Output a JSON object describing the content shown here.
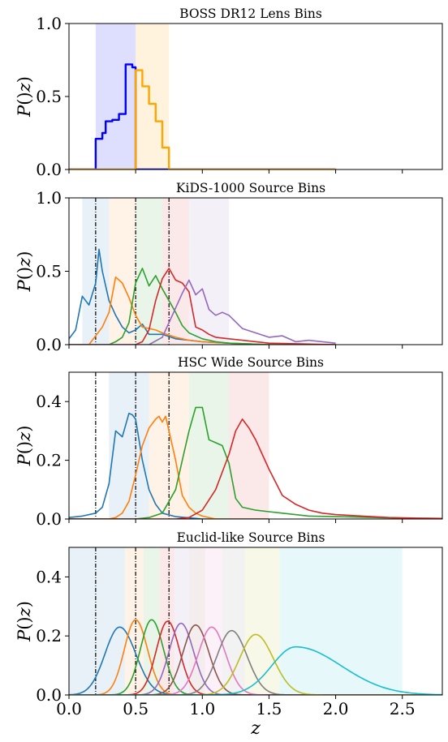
{
  "figure": {
    "xlabel": "z"
  },
  "chart_data": [
    {
      "type": "line",
      "title": "BOSS DR12 Lens Bins",
      "xlabel": "",
      "ylabel": "P(z)",
      "xlim": [
        0,
        2.8
      ],
      "ylim": [
        0,
        1.0
      ],
      "yticks": [
        "0.0",
        "0.5",
        "1.0"
      ],
      "bands": [
        {
          "x0": 0.2,
          "x1": 0.5,
          "color": "#0000ff"
        },
        {
          "x0": 0.5,
          "x1": 0.75,
          "color": "#ffa500"
        }
      ],
      "vlines": [],
      "series": [
        {
          "color": "#0000ff",
          "step": true,
          "x": [
            0.0,
            0.2,
            0.2,
            0.225,
            0.25,
            0.25,
            0.275,
            0.3,
            0.325,
            0.35,
            0.375,
            0.4,
            0.425,
            0.45,
            0.475,
            0.5,
            0.5,
            2.0
          ],
          "y": [
            0.0,
            0.0,
            0.21,
            0.21,
            0.25,
            0.25,
            0.33,
            0.33,
            0.34,
            0.34,
            0.38,
            0.38,
            0.72,
            0.72,
            0.7,
            0.7,
            0.0,
            0.0
          ]
        },
        {
          "color": "#ffa500",
          "step": true,
          "x": [
            0.0,
            0.5,
            0.5,
            0.525,
            0.55,
            0.575,
            0.6,
            0.625,
            0.65,
            0.675,
            0.7,
            0.725,
            0.75,
            0.75,
            2.0
          ],
          "y": [
            0.0,
            0.0,
            0.68,
            0.68,
            0.57,
            0.57,
            0.45,
            0.45,
            0.33,
            0.33,
            0.15,
            0.15,
            0.11,
            0.0,
            0.0
          ]
        }
      ]
    },
    {
      "type": "line",
      "title": "KiDS-1000 Source Bins",
      "xlabel": "",
      "ylabel": "P(z)",
      "xlim": [
        0,
        2.8
      ],
      "ylim": [
        0,
        1.0
      ],
      "yticks": [
        "0.0",
        "0.5",
        "1.0"
      ],
      "bands": [
        {
          "x0": 0.1,
          "x1": 0.3,
          "color": "#1f77b4"
        },
        {
          "x0": 0.3,
          "x1": 0.5,
          "color": "#ff7f0e"
        },
        {
          "x0": 0.5,
          "x1": 0.7,
          "color": "#2ca02c"
        },
        {
          "x0": 0.7,
          "x1": 0.9,
          "color": "#d62728"
        },
        {
          "x0": 0.9,
          "x1": 1.2,
          "color": "#9467bd"
        }
      ],
      "vlines": [
        0.2,
        0.5,
        0.75
      ],
      "series": [
        {
          "color": "#1f77b4",
          "x": [
            0.0,
            0.05,
            0.1,
            0.15,
            0.2,
            0.225,
            0.25,
            0.3,
            0.35,
            0.4,
            0.45,
            0.5,
            0.55,
            0.6,
            0.7,
            0.8,
            0.9,
            1.0,
            1.2,
            1.5,
            2.0
          ],
          "y": [
            0.04,
            0.1,
            0.33,
            0.27,
            0.42,
            0.65,
            0.5,
            0.3,
            0.2,
            0.12,
            0.08,
            0.1,
            0.14,
            0.07,
            0.07,
            0.04,
            0.03,
            0.02,
            0.01,
            0.0,
            0.0
          ]
        },
        {
          "color": "#ff7f0e",
          "x": [
            0.0,
            0.15,
            0.2,
            0.25,
            0.3,
            0.35,
            0.4,
            0.45,
            0.5,
            0.55,
            0.6,
            0.65,
            0.7,
            0.8,
            0.9,
            1.0,
            1.2,
            1.5,
            2.0
          ],
          "y": [
            0.0,
            0.0,
            0.06,
            0.12,
            0.22,
            0.46,
            0.42,
            0.32,
            0.2,
            0.12,
            0.11,
            0.1,
            0.08,
            0.05,
            0.03,
            0.02,
            0.01,
            0.0,
            0.0
          ]
        },
        {
          "color": "#2ca02c",
          "x": [
            0.0,
            0.3,
            0.35,
            0.4,
            0.45,
            0.5,
            0.55,
            0.6,
            0.65,
            0.7,
            0.75,
            0.8,
            0.85,
            0.9,
            1.0,
            1.1,
            1.2,
            1.5,
            2.0
          ],
          "y": [
            0.0,
            0.0,
            0.02,
            0.05,
            0.15,
            0.42,
            0.52,
            0.4,
            0.47,
            0.38,
            0.3,
            0.22,
            0.13,
            0.08,
            0.04,
            0.02,
            0.01,
            0.0,
            0.0
          ]
        },
        {
          "color": "#d62728",
          "x": [
            0.0,
            0.5,
            0.55,
            0.6,
            0.65,
            0.7,
            0.75,
            0.8,
            0.85,
            0.9,
            0.95,
            1.0,
            1.05,
            1.1,
            1.2,
            1.3,
            1.5,
            2.0
          ],
          "y": [
            0.0,
            0.0,
            0.02,
            0.1,
            0.3,
            0.45,
            0.52,
            0.44,
            0.42,
            0.36,
            0.12,
            0.1,
            0.07,
            0.05,
            0.04,
            0.03,
            0.01,
            0.0
          ]
        },
        {
          "color": "#9467bd",
          "x": [
            0.0,
            0.6,
            0.7,
            0.8,
            0.85,
            0.9,
            0.95,
            1.0,
            1.05,
            1.1,
            1.15,
            1.2,
            1.3,
            1.4,
            1.5,
            1.6,
            1.7,
            1.8,
            1.9,
            2.0
          ],
          "y": [
            0.0,
            0.0,
            0.05,
            0.25,
            0.35,
            0.44,
            0.34,
            0.38,
            0.24,
            0.2,
            0.22,
            0.2,
            0.11,
            0.08,
            0.05,
            0.06,
            0.02,
            0.03,
            0.02,
            0.01
          ]
        }
      ]
    },
    {
      "type": "line",
      "title": "HSC Wide Source Bins",
      "xlabel": "",
      "ylabel": "P(z)",
      "xlim": [
        0,
        2.8
      ],
      "ylim": [
        0,
        0.5
      ],
      "yticks": [
        "0.0",
        "0.2",
        "0.4"
      ],
      "bands": [
        {
          "x0": 0.3,
          "x1": 0.6,
          "color": "#1f77b4"
        },
        {
          "x0": 0.6,
          "x1": 0.9,
          "color": "#ff7f0e"
        },
        {
          "x0": 0.9,
          "x1": 1.2,
          "color": "#2ca02c"
        },
        {
          "x0": 1.2,
          "x1": 1.5,
          "color": "#d62728"
        }
      ],
      "vlines": [
        0.2,
        0.5,
        0.75
      ],
      "series": [
        {
          "color": "#1f77b4",
          "x": [
            0.0,
            0.1,
            0.2,
            0.25,
            0.3,
            0.35,
            0.4,
            0.425,
            0.45,
            0.475,
            0.5,
            0.55,
            0.6,
            0.65,
            0.7,
            0.8,
            1.0,
            1.5
          ],
          "y": [
            0.005,
            0.01,
            0.02,
            0.04,
            0.12,
            0.3,
            0.28,
            0.32,
            0.36,
            0.355,
            0.34,
            0.2,
            0.1,
            0.05,
            0.02,
            0.008,
            0.0,
            0.0
          ]
        },
        {
          "color": "#ff7f0e",
          "x": [
            0.0,
            0.3,
            0.35,
            0.4,
            0.45,
            0.5,
            0.55,
            0.6,
            0.65,
            0.675,
            0.7,
            0.725,
            0.75,
            0.8,
            0.85,
            0.9,
            0.95,
            1.0,
            1.1,
            1.5
          ],
          "y": [
            0.0,
            0.0,
            0.005,
            0.02,
            0.06,
            0.15,
            0.25,
            0.31,
            0.34,
            0.35,
            0.33,
            0.35,
            0.3,
            0.2,
            0.08,
            0.04,
            0.02,
            0.01,
            0.0,
            0.0
          ]
        },
        {
          "color": "#2ca02c",
          "x": [
            0.0,
            0.5,
            0.6,
            0.7,
            0.8,
            0.85,
            0.9,
            0.95,
            1.0,
            1.05,
            1.1,
            1.15,
            1.2,
            1.25,
            1.3,
            1.4,
            1.5,
            1.6,
            1.8,
            2.0,
            2.5,
            2.8
          ],
          "y": [
            0.0,
            0.0,
            0.005,
            0.02,
            0.1,
            0.2,
            0.3,
            0.38,
            0.38,
            0.27,
            0.26,
            0.25,
            0.19,
            0.07,
            0.04,
            0.03,
            0.025,
            0.02,
            0.01,
            0.008,
            0.003,
            0.002
          ]
        },
        {
          "color": "#d62728",
          "x": [
            0.0,
            0.8,
            0.9,
            1.0,
            1.1,
            1.2,
            1.25,
            1.3,
            1.35,
            1.4,
            1.5,
            1.6,
            1.7,
            1.8,
            1.9,
            2.0,
            2.2,
            2.4,
            2.6,
            2.8
          ],
          "y": [
            0.0,
            0.0,
            0.005,
            0.03,
            0.1,
            0.22,
            0.3,
            0.34,
            0.31,
            0.27,
            0.17,
            0.08,
            0.05,
            0.03,
            0.02,
            0.015,
            0.01,
            0.005,
            0.003,
            0.002
          ]
        }
      ]
    },
    {
      "type": "line",
      "title": "Euclid-like Source Bins",
      "xlabel": "z",
      "ylabel": "P(z)",
      "xlim": [
        0,
        2.8
      ],
      "ylim": [
        0,
        0.5
      ],
      "yticks": [
        "0.0",
        "0.2",
        "0.4"
      ],
      "xticks": [
        "0.0",
        "0.5",
        "1.0",
        "1.5",
        "2.0",
        "2.5"
      ],
      "bands": [
        {
          "x0": 0.0,
          "x1": 0.42,
          "color": "#1f77b4"
        },
        {
          "x0": 0.42,
          "x1": 0.56,
          "color": "#ff7f0e"
        },
        {
          "x0": 0.56,
          "x1": 0.68,
          "color": "#2ca02c"
        },
        {
          "x0": 0.68,
          "x1": 0.79,
          "color": "#d62728"
        },
        {
          "x0": 0.79,
          "x1": 0.9,
          "color": "#9467bd"
        },
        {
          "x0": 0.9,
          "x1": 1.02,
          "color": "#8c564b"
        },
        {
          "x0": 1.02,
          "x1": 1.15,
          "color": "#e377c2"
        },
        {
          "x0": 1.15,
          "x1": 1.32,
          "color": "#7f7f7f"
        },
        {
          "x0": 1.32,
          "x1": 1.58,
          "color": "#bcbd22"
        },
        {
          "x0": 1.58,
          "x1": 2.5,
          "color": "#17becf"
        }
      ],
      "vlines": [
        0.2,
        0.5,
        0.75
      ],
      "series": [
        {
          "color": "#1f77b4",
          "gauss": true,
          "mu": 0.38,
          "sigma": 0.11,
          "amp": 0.23,
          "skew": 1.1
        },
        {
          "color": "#ff7f0e",
          "gauss": true,
          "mu": 0.5,
          "sigma": 0.085,
          "amp": 0.255,
          "skew": 1.05
        },
        {
          "color": "#2ca02c",
          "gauss": true,
          "mu": 0.62,
          "sigma": 0.085,
          "amp": 0.255,
          "skew": 1.05
        },
        {
          "color": "#d62728",
          "gauss": true,
          "mu": 0.74,
          "sigma": 0.085,
          "amp": 0.25,
          "skew": 1.05
        },
        {
          "color": "#9467bd",
          "gauss": true,
          "mu": 0.84,
          "sigma": 0.09,
          "amp": 0.243,
          "skew": 1.05
        },
        {
          "color": "#8c564b",
          "gauss": true,
          "mu": 0.95,
          "sigma": 0.095,
          "amp": 0.237,
          "skew": 1.05
        },
        {
          "color": "#e377c2",
          "gauss": true,
          "mu": 1.07,
          "sigma": 0.1,
          "amp": 0.23,
          "skew": 1.05
        },
        {
          "color": "#7f7f7f",
          "gauss": true,
          "mu": 1.22,
          "sigma": 0.11,
          "amp": 0.218,
          "skew": 1.05
        },
        {
          "color": "#bcbd22",
          "gauss": true,
          "mu": 1.4,
          "sigma": 0.12,
          "amp": 0.205,
          "skew": 1.1
        },
        {
          "color": "#17becf",
          "gauss": true,
          "mu": 1.7,
          "sigma": 0.18,
          "amp": 0.163,
          "skew": 1.9
        }
      ]
    }
  ]
}
